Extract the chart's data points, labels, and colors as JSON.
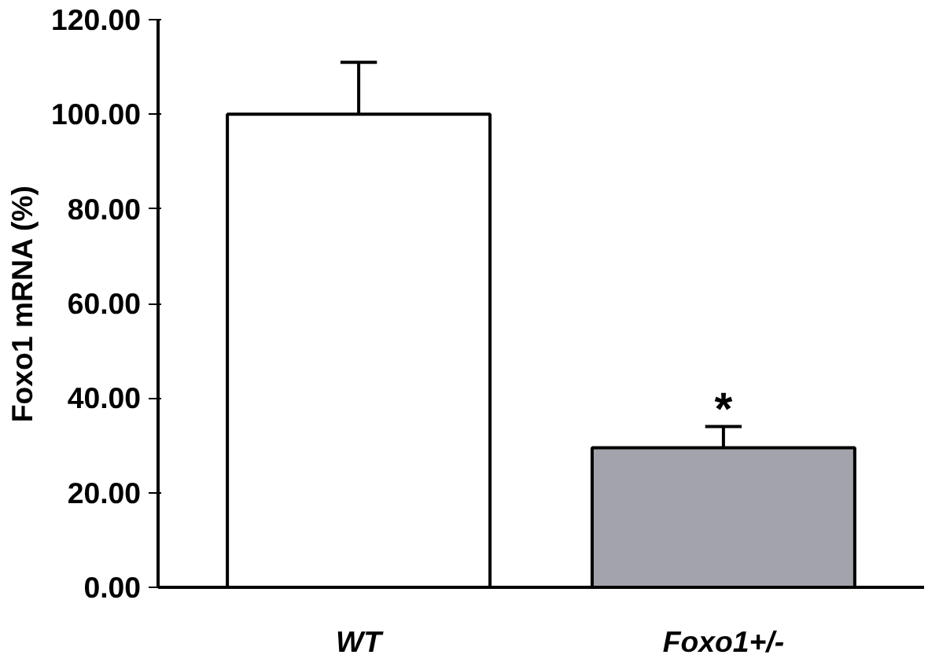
{
  "chart_data": {
    "type": "bar",
    "ylabel": "Foxo1 mRNA (%)",
    "categories": [
      "WT",
      "Foxo1+/-"
    ],
    "values": [
      100,
      29.5
    ],
    "colors": [
      "#ffffff",
      "#a3a3ab"
    ],
    "errors": [
      [
        100,
        111
      ],
      [
        29.5,
        34
      ]
    ],
    "ylim": [
      0,
      120
    ],
    "yticks": [
      {
        "value": 0,
        "label": "0.00"
      },
      {
        "value": 20,
        "label": "20.00"
      },
      {
        "value": 40,
        "label": "40.00"
      },
      {
        "value": 60,
        "label": "60.00"
      },
      {
        "value": 80,
        "label": "80.00"
      },
      {
        "value": 100,
        "label": "100.00"
      },
      {
        "value": 120,
        "label": "120.00"
      }
    ],
    "annotations": [
      {
        "text": "*",
        "x": "Foxo1+/-",
        "y": 34
      }
    ],
    "grid": false
  }
}
